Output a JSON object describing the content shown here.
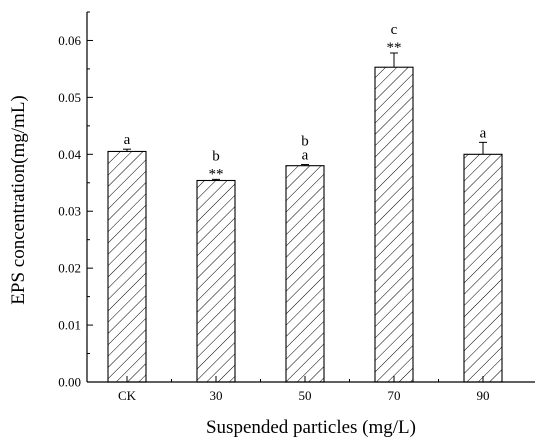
{
  "chart_data": {
    "type": "bar",
    "xlabel": "Suspended particles (mg/L)",
    "ylabel": "EPS concentration(mg/mL)",
    "categories": [
      "CK",
      "30",
      "50",
      "70",
      "90"
    ],
    "values": [
      0.0405,
      0.0354,
      0.038,
      0.0553,
      0.04
    ],
    "errors": [
      0.0004,
      0.0002,
      0.0002,
      0.0025,
      0.0021
    ],
    "annotations": [
      [
        "a"
      ],
      [
        "b",
        "**"
      ],
      [
        "b",
        "a"
      ],
      [
        "c",
        "**"
      ],
      [
        "a"
      ]
    ],
    "ylim": [
      0,
      0.065
    ],
    "yticks": [
      "0.00",
      "0.01",
      "0.02",
      "0.03",
      "0.04",
      "0.05",
      "0.06"
    ],
    "yticks_values": [
      0,
      0.01,
      0.02,
      0.03,
      0.04,
      0.05,
      0.06
    ],
    "bar_fill": "hatched",
    "grid": false,
    "legend": "none"
  }
}
